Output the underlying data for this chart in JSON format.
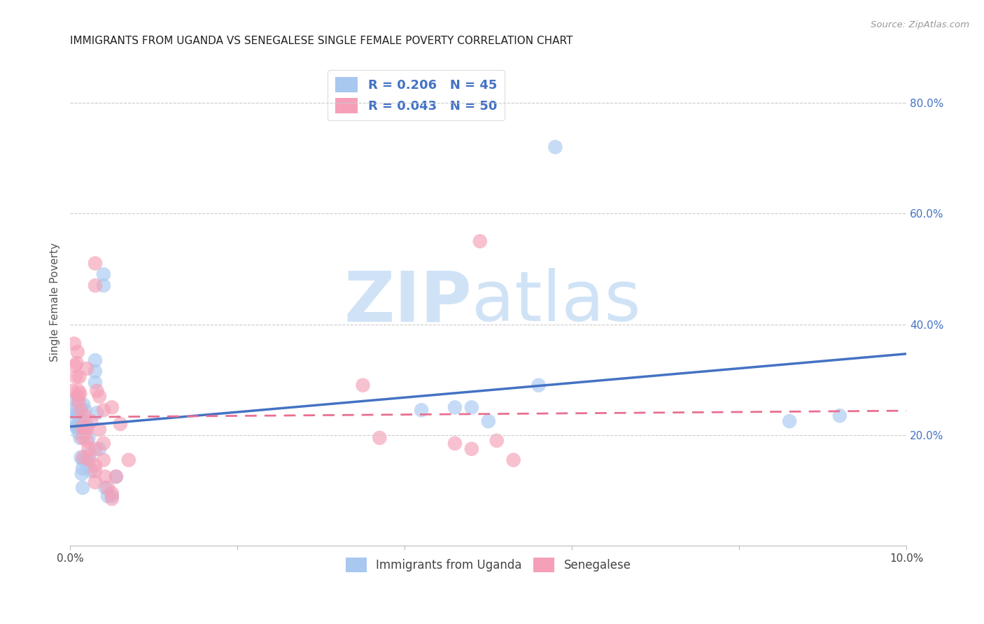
{
  "title": "IMMIGRANTS FROM UGANDA VS SENEGALESE SINGLE FEMALE POVERTY CORRELATION CHART",
  "source": "Source: ZipAtlas.com",
  "xlabel": "",
  "ylabel": "Single Female Poverty",
  "xlim": [
    0.0,
    0.1
  ],
  "ylim": [
    0.0,
    0.88
  ],
  "right_yticks": [
    0.2,
    0.4,
    0.6,
    0.8
  ],
  "right_yticklabels": [
    "20.0%",
    "40.0%",
    "60.0%",
    "80.0%"
  ],
  "xticks": [
    0.0,
    0.02,
    0.04,
    0.06,
    0.08,
    0.1
  ],
  "xticklabels": [
    "0.0%",
    "",
    "",
    "",
    "",
    "10.0%"
  ],
  "series1_label": "Immigrants from Uganda",
  "series2_label": "Senegalese",
  "series1_color": "#a8c8f0",
  "series2_color": "#f5a0b8",
  "series1_line_color": "#4472c4",
  "series2_line_color": "#e87090",
  "background_color": "#ffffff",
  "grid_color": "#cccccc",
  "uganda_x": [
    0.0005,
    0.0005,
    0.0005,
    0.0007,
    0.0008,
    0.0009,
    0.001,
    0.001,
    0.001,
    0.001,
    0.001,
    0.0012,
    0.0012,
    0.0013,
    0.0014,
    0.0015,
    0.0015,
    0.0015,
    0.0016,
    0.0018,
    0.002,
    0.002,
    0.002,
    0.0022,
    0.0023,
    0.0025,
    0.003,
    0.003,
    0.003,
    0.0032,
    0.0035,
    0.004,
    0.004,
    0.0042,
    0.0045,
    0.005,
    0.0055,
    0.042,
    0.046,
    0.048,
    0.05,
    0.056,
    0.058,
    0.086,
    0.092
  ],
  "uganda_y": [
    0.265,
    0.245,
    0.228,
    0.215,
    0.215,
    0.245,
    0.26,
    0.24,
    0.235,
    0.215,
    0.205,
    0.21,
    0.195,
    0.16,
    0.13,
    0.105,
    0.14,
    0.155,
    0.255,
    0.245,
    0.22,
    0.215,
    0.155,
    0.195,
    0.165,
    0.135,
    0.295,
    0.315,
    0.335,
    0.24,
    0.175,
    0.47,
    0.49,
    0.105,
    0.09,
    0.09,
    0.125,
    0.245,
    0.25,
    0.25,
    0.225,
    0.29,
    0.72,
    0.225,
    0.235
  ],
  "senegal_x": [
    0.0003,
    0.0005,
    0.0006,
    0.0007,
    0.0008,
    0.0009,
    0.001,
    0.001,
    0.001,
    0.0011,
    0.0012,
    0.0013,
    0.0014,
    0.0015,
    0.0016,
    0.0017,
    0.0018,
    0.002,
    0.002,
    0.002,
    0.0022,
    0.0023,
    0.0025,
    0.003,
    0.003,
    0.003,
    0.003,
    0.0032,
    0.0035,
    0.004,
    0.004,
    0.0042,
    0.0045,
    0.005,
    0.005,
    0.0055,
    0.035,
    0.037,
    0.046,
    0.048,
    0.049,
    0.051,
    0.053,
    0.003,
    0.003,
    0.0035,
    0.004,
    0.005,
    0.006,
    0.007
  ],
  "senegal_y": [
    0.28,
    0.365,
    0.325,
    0.305,
    0.33,
    0.35,
    0.27,
    0.26,
    0.28,
    0.305,
    0.275,
    0.245,
    0.215,
    0.195,
    0.16,
    0.235,
    0.205,
    0.19,
    0.21,
    0.32,
    0.175,
    0.155,
    0.225,
    0.145,
    0.115,
    0.175,
    0.135,
    0.28,
    0.21,
    0.185,
    0.155,
    0.125,
    0.105,
    0.095,
    0.085,
    0.125,
    0.29,
    0.195,
    0.185,
    0.175,
    0.55,
    0.19,
    0.155,
    0.47,
    0.51,
    0.27,
    0.245,
    0.25,
    0.22,
    0.155
  ],
  "title_fontsize": 11,
  "axis_label_fontsize": 11,
  "tick_fontsize": 11,
  "legend_fontsize": 13
}
